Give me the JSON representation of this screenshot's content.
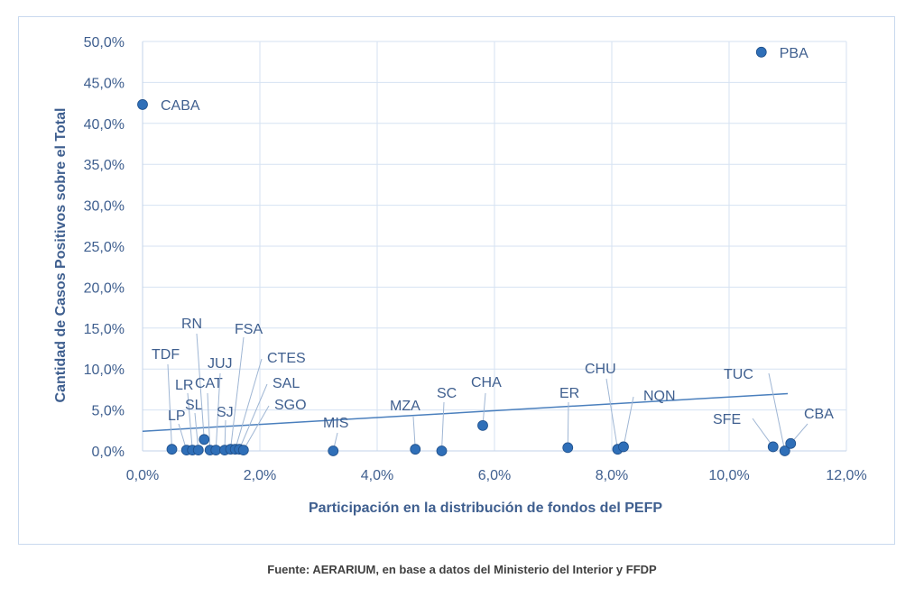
{
  "chart_data": {
    "type": "scatter",
    "xlabel": "Participación  en la distribución  de fondos del PEFP",
    "ylabel": "Cantidad de Casos Positivos sobre el Total",
    "xlim": [
      0,
      12
    ],
    "ylim": [
      0,
      50
    ],
    "x_ticks": [
      "0,0%",
      "2,0%",
      "4,0%",
      "6,0%",
      "8,0%",
      "10,0%",
      "12,0%"
    ],
    "y_ticks": [
      "0,0%",
      "5,0%",
      "10,0%",
      "15,0%",
      "20,0%",
      "25,0%",
      "30,0%",
      "35,0%",
      "40,0%",
      "45,0%",
      "50,0%"
    ],
    "grid": true,
    "marker_color": "#2f6fb8",
    "trendline": {
      "x": [
        0,
        11
      ],
      "y": [
        2.4,
        7.0
      ]
    },
    "points": [
      {
        "label": "CABA",
        "x": 0.0,
        "y": 42.3
      },
      {
        "label": "PBA",
        "x": 10.55,
        "y": 48.7
      },
      {
        "label": "TDF",
        "x": 0.5,
        "y": 0.2
      },
      {
        "label": "LP",
        "x": 0.75,
        "y": 0.1
      },
      {
        "label": "LR",
        "x": 0.85,
        "y": 0.1
      },
      {
        "label": "SL",
        "x": 0.95,
        "y": 0.1
      },
      {
        "label": "RN",
        "x": 1.05,
        "y": 1.4
      },
      {
        "label": "CAT",
        "x": 1.15,
        "y": 0.1
      },
      {
        "label": "JUJ",
        "x": 1.25,
        "y": 0.1
      },
      {
        "label": "SJ",
        "x": 1.4,
        "y": 0.1
      },
      {
        "label": "FSA",
        "x": 1.5,
        "y": 0.2
      },
      {
        "label": "CTES",
        "x": 1.58,
        "y": 0.2
      },
      {
        "label": "SAL",
        "x": 1.65,
        "y": 0.2
      },
      {
        "label": "SGO",
        "x": 1.72,
        "y": 0.1
      },
      {
        "label": "MIS",
        "x": 3.25,
        "y": 0.0
      },
      {
        "label": "MZA",
        "x": 4.65,
        "y": 0.2
      },
      {
        "label": "SC",
        "x": 5.1,
        "y": 0.0
      },
      {
        "label": "CHA",
        "x": 5.8,
        "y": 3.1
      },
      {
        "label": "ER",
        "x": 7.25,
        "y": 0.4
      },
      {
        "label": "CHU",
        "x": 8.1,
        "y": 0.2
      },
      {
        "label": "NQN",
        "x": 8.2,
        "y": 0.5
      },
      {
        "label": "SFE",
        "x": 10.75,
        "y": 0.5
      },
      {
        "label": "TUC",
        "x": 10.95,
        "y": 0.0
      },
      {
        "label": "CBA",
        "x": 11.05,
        "y": 0.9
      }
    ]
  },
  "source": "Fuente: AERARIUM, en base a datos del Ministerio del Interior y FFDP"
}
